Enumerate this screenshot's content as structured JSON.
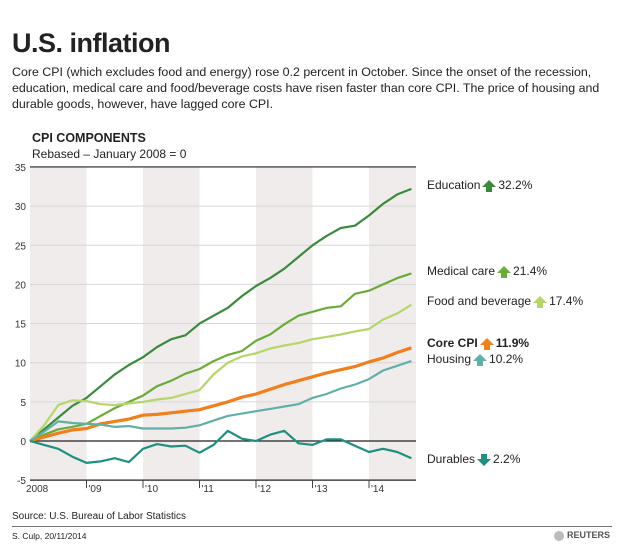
{
  "title": "U.S. inflation",
  "intro": "Core CPI (which excludes food and energy) rose 0.2 percent in October. Since the onset of the recession, education, medical care and food/beverage costs have risen faster than core CPI. The price of housing and durable goods, however, have lagged core CPI.",
  "source": "Source: U.S. Bureau of Labor Statistics",
  "credit": "S. Culp, 20/11/2014",
  "logo": "REUTERS",
  "chart_data": {
    "type": "line",
    "title": "CPI COMPONENTS",
    "subtitle": "Rebased – January 2008 = 0",
    "xlabel": "",
    "ylabel": "",
    "ylim": [
      -5,
      35
    ],
    "yticks": [
      -5,
      0,
      5,
      10,
      15,
      20,
      25,
      30,
      35
    ],
    "xticks": [
      "2008",
      "'09",
      "'10",
      "'11",
      "'12",
      "'13",
      "'14"
    ],
    "grid": true,
    "shaded_years": [
      "2008",
      "2010",
      "2012",
      "2014"
    ],
    "x": [
      "2008-01",
      "2008-04",
      "2008-07",
      "2008-10",
      "2009-01",
      "2009-04",
      "2009-07",
      "2009-10",
      "2010-01",
      "2010-04",
      "2010-07",
      "2010-10",
      "2011-01",
      "2011-04",
      "2011-07",
      "2011-10",
      "2012-01",
      "2012-04",
      "2012-07",
      "2012-10",
      "2013-01",
      "2013-04",
      "2013-07",
      "2013-10",
      "2014-01",
      "2014-04",
      "2014-07",
      "2014-10"
    ],
    "series": [
      {
        "name": "Education",
        "label": "32.2%",
        "direction": "up",
        "color": "#3d8a3d",
        "bold": false,
        "values": [
          0,
          1.5,
          3,
          4.5,
          5.5,
          7,
          8.5,
          9.7,
          10.7,
          12,
          13,
          13.5,
          15,
          16,
          17,
          18.5,
          19.8,
          20.8,
          22,
          23.5,
          25,
          26.2,
          27.2,
          27.5,
          28.8,
          30.3,
          31.5,
          32.2
        ]
      },
      {
        "name": "Medical care",
        "label": "21.4%",
        "direction": "up",
        "color": "#6aab3a",
        "bold": false,
        "values": [
          0,
          0.8,
          1.5,
          1.8,
          2.2,
          3.2,
          4.2,
          5,
          5.8,
          7,
          7.7,
          8.6,
          9.2,
          10.2,
          11,
          11.5,
          12.8,
          13.6,
          14.9,
          16,
          16.5,
          17,
          17.2,
          18.8,
          19.2,
          20,
          20.8,
          21.4
        ]
      },
      {
        "name": "Food and beverage",
        "label": "17.4%",
        "direction": "up",
        "color": "#b6d56a",
        "bold": false,
        "values": [
          0,
          2,
          4.6,
          5.2,
          5.1,
          4.7,
          4.6,
          4.8,
          5,
          5.3,
          5.5,
          6,
          6.5,
          8.5,
          10,
          10.8,
          11.2,
          11.8,
          12.2,
          12.5,
          13,
          13.3,
          13.6,
          14,
          14.3,
          15.5,
          16.3,
          17.4
        ]
      },
      {
        "name": "Core CPI",
        "label": "11.9%",
        "direction": "up",
        "color": "#f07f1c",
        "bold": true,
        "values": [
          0,
          0.5,
          1,
          1.4,
          1.6,
          2.2,
          2.5,
          2.8,
          3.3,
          3.4,
          3.6,
          3.8,
          4,
          4.5,
          5,
          5.6,
          6,
          6.6,
          7.2,
          7.7,
          8.2,
          8.7,
          9.1,
          9.5,
          10.1,
          10.6,
          11.3,
          11.9
        ]
      },
      {
        "name": "Housing",
        "label": "10.2%",
        "direction": "up",
        "color": "#5fb0a8",
        "bold": false,
        "values": [
          0,
          1.2,
          2.5,
          2.3,
          2.2,
          2.1,
          1.8,
          1.9,
          1.6,
          1.6,
          1.6,
          1.7,
          2,
          2.6,
          3.2,
          3.5,
          3.8,
          4.1,
          4.4,
          4.7,
          5.5,
          6,
          6.7,
          7.2,
          7.9,
          9,
          9.6,
          10.2
        ]
      },
      {
        "name": "Durables",
        "label": "2.2%",
        "direction": "down",
        "color": "#1f8f82",
        "bold": false,
        "values": [
          0,
          -0.5,
          -1,
          -2,
          -2.8,
          -2.6,
          -2.2,
          -2.7,
          -1,
          -0.4,
          -0.7,
          -0.6,
          -1.5,
          -0.5,
          1.3,
          0.3,
          0,
          0.8,
          1.3,
          -0.3,
          -0.5,
          0.2,
          0.2,
          -0.6,
          -1.4,
          -1,
          -1.4,
          -2.2
        ]
      }
    ]
  }
}
